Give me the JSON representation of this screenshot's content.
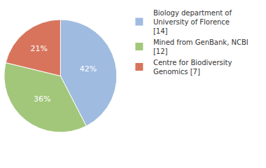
{
  "chart_data": {
    "type": "pie",
    "categories": [
      "Biology department of University of Florence [14]",
      "Mined from GenBank, NCBI [12]",
      "Centre for Biodiversity Genomics [7]"
    ],
    "values": [
      42,
      36,
      21
    ],
    "value_labels": [
      "42%",
      "36%",
      "21%"
    ],
    "colors": [
      "#9fbbe0",
      "#a2c77a",
      "#d8745c"
    ],
    "data_labels": true,
    "legend": "top-right"
  }
}
